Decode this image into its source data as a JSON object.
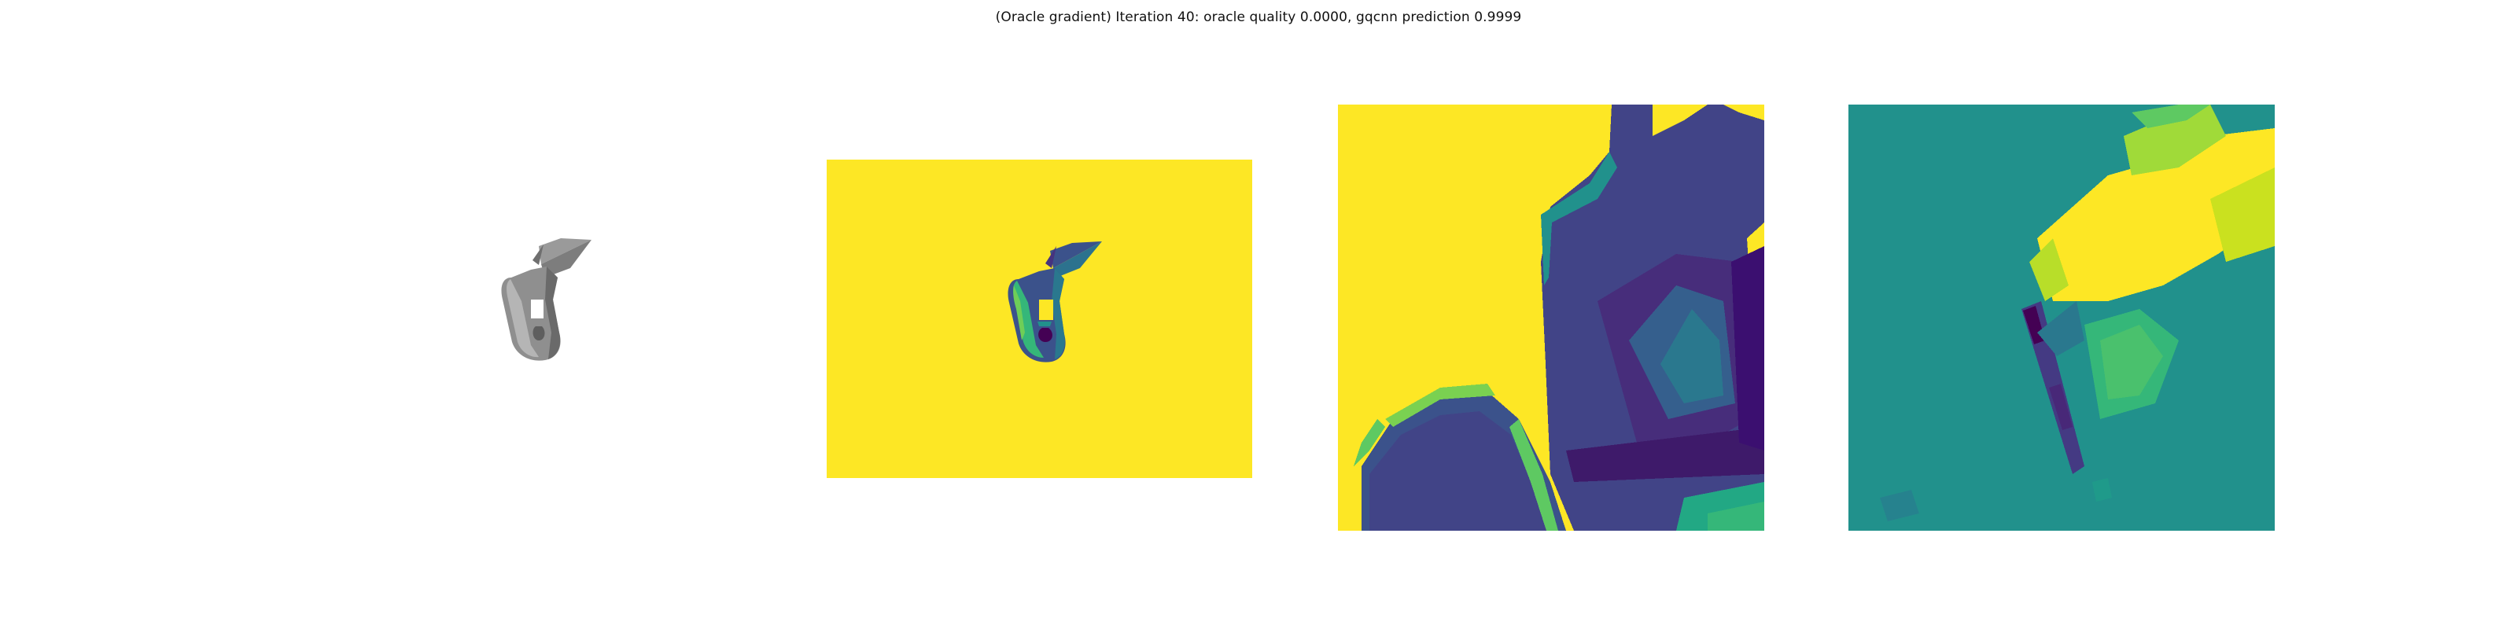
{
  "figure": {
    "title": "(Oracle gradient) Iteration 40: oracle quality 0.0000, gqcnn prediction 0.9999"
  },
  "panels": [
    {
      "id": "rendered-object"
    },
    {
      "id": "depth-image"
    },
    {
      "id": "depth-crop"
    },
    {
      "id": "oracle-gradient"
    }
  ],
  "colors": {
    "background": "#ffffff",
    "viridis_yellow": "#fde725",
    "viridis_dark": "#440154",
    "viridis_blue": "#3b528b",
    "viridis_teal": "#21918c",
    "viridis_green": "#5ec962",
    "object_gray": "#8c8c8c"
  }
}
